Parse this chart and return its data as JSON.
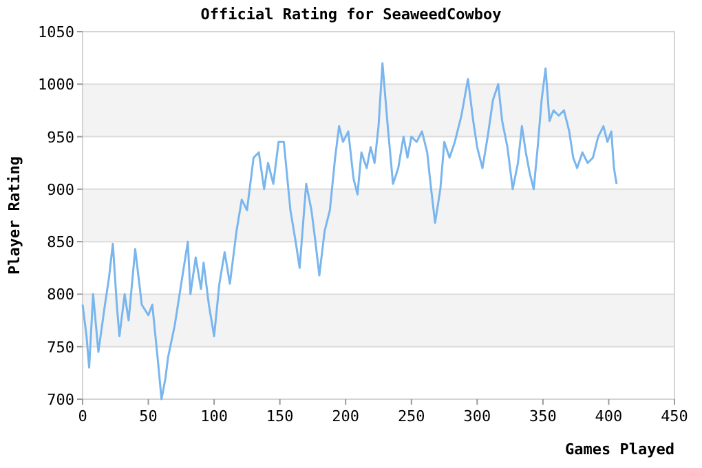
{
  "chart_data": {
    "type": "line",
    "title": "Official Rating for SeaweedCowboy",
    "xlabel": "Games Played",
    "ylabel": "Player Rating",
    "xlim": [
      0,
      450
    ],
    "xticks": [
      0,
      50,
      100,
      150,
      200,
      250,
      300,
      350,
      400,
      450
    ],
    "ylim": [
      700,
      1050
    ],
    "yticks": [
      700,
      750,
      800,
      850,
      900,
      950,
      1000,
      1050
    ],
    "grid": "y",
    "marker": "none",
    "line_style": "solid",
    "series": [
      {
        "color": "#7ab6ee",
        "x": [
          0,
          3,
          5,
          8,
          12,
          17,
          20,
          23,
          26,
          28,
          32,
          35,
          40,
          45,
          50,
          53,
          57,
          60,
          63,
          65,
          70,
          75,
          80,
          82,
          86,
          90,
          92,
          96,
          100,
          104,
          108,
          112,
          117,
          121,
          125,
          130,
          134,
          138,
          141,
          145,
          149,
          153,
          158,
          162,
          165,
          170,
          174,
          177,
          180,
          184,
          188,
          192,
          195,
          198,
          202,
          206,
          209,
          212,
          216,
          219,
          222,
          225,
          228,
          232,
          236,
          240,
          244,
          247,
          250,
          254,
          258,
          262,
          265,
          268,
          272,
          275,
          279,
          283,
          288,
          293,
          297,
          300,
          304,
          308,
          312,
          316,
          319,
          323,
          327,
          331,
          334,
          337,
          340,
          343,
          346,
          349,
          352,
          355,
          358,
          362,
          366,
          370,
          373,
          376,
          380,
          384,
          388,
          392,
          396,
          399,
          402,
          404,
          406
        ],
        "values": [
          790,
          760,
          730,
          800,
          745,
          790,
          815,
          848,
          790,
          760,
          800,
          775,
          843,
          790,
          780,
          790,
          740,
          700,
          720,
          740,
          770,
          810,
          850,
          800,
          835,
          805,
          830,
          790,
          760,
          810,
          840,
          810,
          860,
          890,
          880,
          930,
          935,
          900,
          925,
          905,
          945,
          945,
          880,
          850,
          825,
          905,
          880,
          850,
          818,
          860,
          880,
          930,
          960,
          945,
          955,
          910,
          895,
          935,
          920,
          940,
          925,
          960,
          1020,
          960,
          905,
          920,
          950,
          930,
          950,
          945,
          955,
          935,
          900,
          868,
          900,
          945,
          930,
          945,
          970,
          1005,
          965,
          940,
          920,
          950,
          985,
          1000,
          965,
          940,
          900,
          925,
          960,
          935,
          915,
          900,
          940,
          985,
          1015,
          965,
          975,
          970,
          975,
          955,
          930,
          920,
          935,
          925,
          930,
          950,
          960,
          945,
          955,
          920,
          905
        ]
      }
    ]
  }
}
